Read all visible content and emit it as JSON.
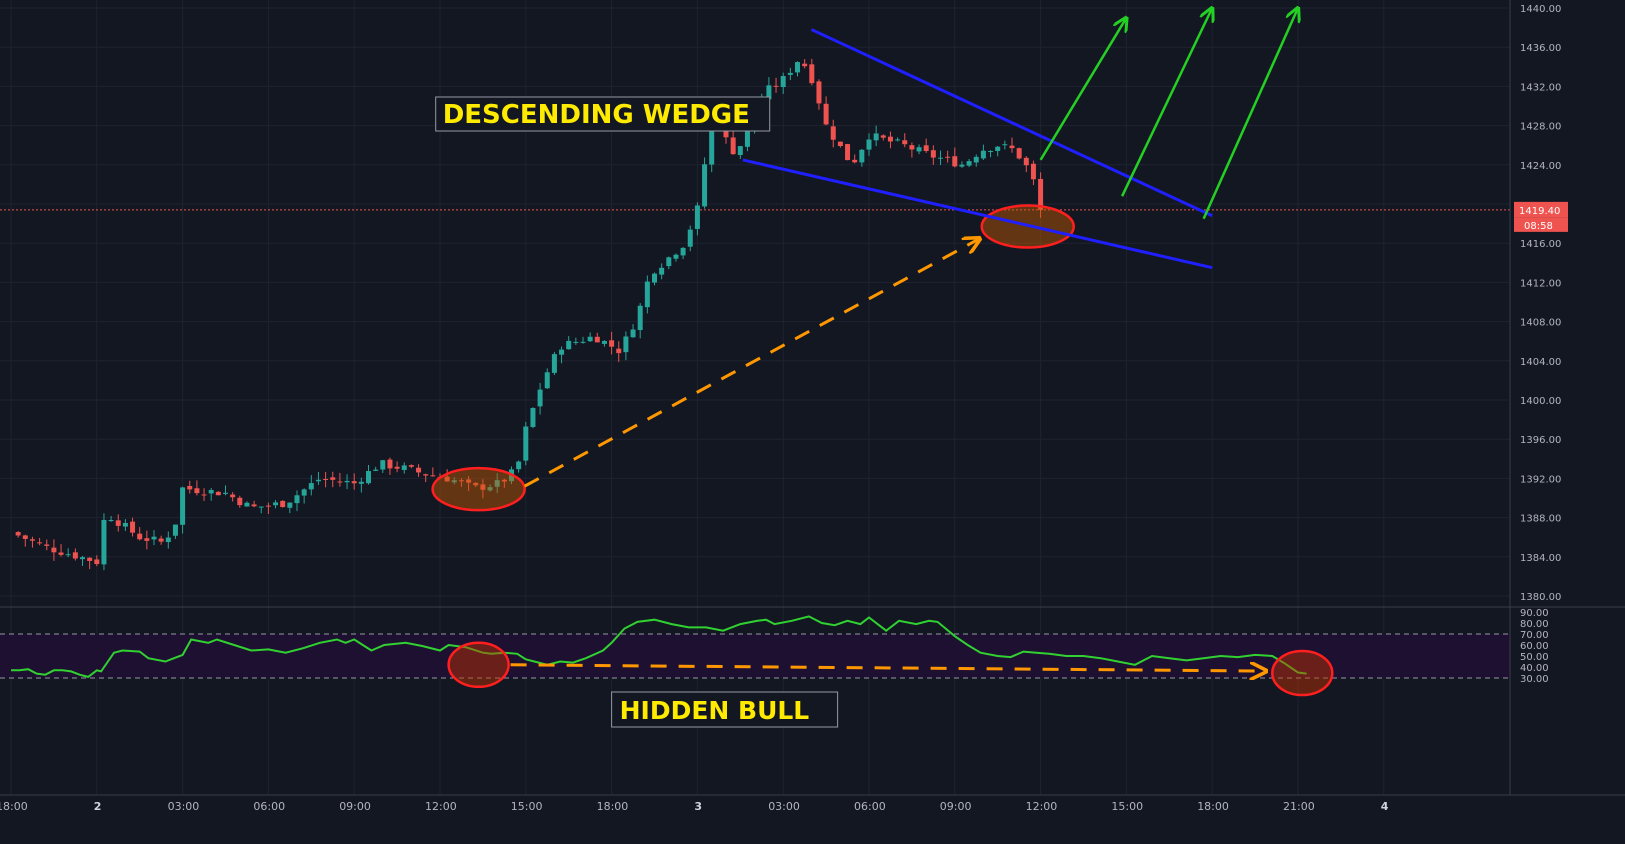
{
  "colors": {
    "background": "#131722",
    "grid": "#1f2330",
    "up_candle": "#26a69a",
    "down_candle": "#ef5350",
    "trendline": "#1f1fff",
    "arrows": "#24d024",
    "divergence": "#ff9800",
    "circles": "#ff1f1f",
    "rsi_line": "#30d130",
    "rsi_band": "#1e1030",
    "label_text": "#ffeb00",
    "price_tag": "#ef5350"
  },
  "annotations": {
    "wedge_label": "DESCENDING WEDGE",
    "hidden_bull_label": "HIDDEN BULL"
  },
  "price_axis": {
    "ticks": [
      "1440.00",
      "1436.00",
      "1432.00",
      "1428.00",
      "1424.00",
      "1420.00",
      "1416.00",
      "1412.00",
      "1408.00",
      "1404.00",
      "1400.00",
      "1396.00",
      "1392.00",
      "1388.00",
      "1384.00",
      "1380.00"
    ],
    "current_price": "1419.40",
    "countdown": "08:58"
  },
  "rsi_axis": {
    "ticks": [
      "90.00",
      "80.00",
      "70.00",
      "60.00",
      "50.00",
      "40.00",
      "30.00"
    ]
  },
  "time_axis": {
    "labels": [
      "18:00",
      "2",
      "03:00",
      "06:00",
      "09:00",
      "12:00",
      "15:00",
      "18:00",
      "3",
      "03:00",
      "06:00",
      "09:00",
      "12:00",
      "15:00",
      "18:00",
      "21:00",
      "4"
    ]
  },
  "chart_data": [
    {
      "type": "candlestick",
      "title": "",
      "ylim": [
        1379,
        1441
      ],
      "current_price": 1419.4,
      "x_sessions": [
        "1 18:00",
        "2",
        "2 03:00",
        "2 06:00",
        "2 09:00",
        "2 12:00",
        "2 15:00",
        "2 18:00",
        "3",
        "3 03:00",
        "3 06:00",
        "3 09:00",
        "3 12:00",
        "3 15:00",
        "3 18:00",
        "3 21:00",
        "4"
      ],
      "close_path": [
        [
          0.0,
          1386.5
        ],
        [
          0.4,
          1385.0
        ],
        [
          0.8,
          1384.0
        ],
        [
          1.0,
          1383.5
        ],
        [
          1.1,
          1388.5
        ],
        [
          1.5,
          1386.0
        ],
        [
          1.75,
          1385.5
        ],
        [
          1.9,
          1386.8
        ],
        [
          2.0,
          1391.0
        ],
        [
          2.5,
          1390.5
        ],
        [
          2.8,
          1389.0
        ],
        [
          3.2,
          1389.5
        ],
        [
          3.6,
          1392.0
        ],
        [
          4.0,
          1391.5
        ],
        [
          4.3,
          1393.5
        ],
        [
          4.6,
          1393.0
        ],
        [
          4.8,
          1392.5
        ],
        [
          5.1,
          1392.0
        ],
        [
          5.4,
          1391.0
        ],
        [
          5.7,
          1391.5
        ],
        [
          5.9,
          1393.0
        ],
        [
          6.0,
          1397.0
        ],
        [
          6.2,
          1402.0
        ],
        [
          6.4,
          1405.5
        ],
        [
          6.8,
          1406.5
        ],
        [
          7.1,
          1405.0
        ],
        [
          7.3,
          1408.5
        ],
        [
          7.45,
          1413.0
        ],
        [
          7.6,
          1414.0
        ],
        [
          7.85,
          1416.0
        ],
        [
          8.0,
          1419.5
        ],
        [
          8.1,
          1425.0
        ],
        [
          8.12,
          1430.5
        ],
        [
          8.3,
          1427.0
        ],
        [
          8.45,
          1425.0
        ],
        [
          8.6,
          1428.0
        ],
        [
          8.8,
          1431.5
        ],
        [
          8.98,
          1432.5
        ],
        [
          9.2,
          1435.0
        ],
        [
          9.35,
          1432.5
        ],
        [
          9.5,
          1428.0
        ],
        [
          9.8,
          1424.0
        ],
        [
          10.0,
          1427.0
        ],
        [
          10.2,
          1426.5
        ],
        [
          10.4,
          1426.0
        ],
        [
          10.7,
          1425.0
        ],
        [
          10.9,
          1424.5
        ],
        [
          11.1,
          1424.0
        ],
        [
          11.3,
          1425.5
        ],
        [
          11.5,
          1426.0
        ],
        [
          11.7,
          1425.5
        ],
        [
          11.9,
          1423.0
        ],
        [
          11.95,
          1421.0
        ],
        [
          12.0,
          1419.4
        ]
      ],
      "wedge_upper": [
        [
          9.33,
          1437.8
        ],
        [
          14.0,
          1418.8
        ]
      ],
      "wedge_lower": [
        [
          8.53,
          1424.5
        ],
        [
          14.0,
          1413.5
        ]
      ],
      "projected_arrows": [
        [
          [
            12.0,
            1424.5
          ],
          [
            13.0,
            1439.0
          ]
        ],
        [
          [
            12.95,
            1420.8
          ],
          [
            14.0,
            1440.0
          ]
        ],
        [
          [
            13.9,
            1418.5
          ],
          [
            15.0,
            1440.0
          ]
        ]
      ],
      "swing_lows": [
        {
          "x": 5.45,
          "y": 1390.9
        },
        {
          "x": 11.85,
          "y": 1417.7
        }
      ]
    },
    {
      "type": "line",
      "title": "",
      "ylim": [
        27,
        91
      ],
      "bands": [
        30,
        70
      ],
      "series": [
        {
          "values": [
            [
              0.0,
              37
            ],
            [
              0.1,
              37
            ],
            [
              0.2,
              38
            ],
            [
              0.3,
              34
            ],
            [
              0.4,
              33
            ],
            [
              0.5,
              37
            ],
            [
              0.6,
              37
            ],
            [
              0.7,
              36
            ],
            [
              0.8,
              33
            ],
            [
              0.9,
              31
            ],
            [
              1.0,
              37
            ],
            [
              1.05,
              36
            ],
            [
              1.2,
              53
            ],
            [
              1.3,
              55
            ],
            [
              1.5,
              54
            ],
            [
              1.6,
              48
            ],
            [
              1.8,
              45
            ],
            [
              1.9,
              48
            ],
            [
              2.0,
              51
            ],
            [
              2.1,
              65
            ],
            [
              2.3,
              62
            ],
            [
              2.4,
              65
            ],
            [
              2.6,
              60
            ],
            [
              2.8,
              55
            ],
            [
              3.0,
              56
            ],
            [
              3.2,
              53
            ],
            [
              3.4,
              57
            ],
            [
              3.6,
              62
            ],
            [
              3.8,
              65
            ],
            [
              3.9,
              62
            ],
            [
              4.0,
              65
            ],
            [
              4.2,
              55
            ],
            [
              4.35,
              60
            ],
            [
              4.6,
              62
            ],
            [
              4.8,
              59
            ],
            [
              5.0,
              55
            ],
            [
              5.1,
              60
            ],
            [
              5.3,
              58
            ],
            [
              5.5,
              53
            ],
            [
              5.6,
              52
            ],
            [
              5.75,
              53
            ],
            [
              5.9,
              52
            ],
            [
              6.0,
              47
            ],
            [
              6.15,
              44
            ],
            [
              6.25,
              42
            ],
            [
              6.4,
              45
            ],
            [
              6.55,
              44
            ],
            [
              6.7,
              48
            ],
            [
              6.9,
              55
            ],
            [
              7.0,
              62
            ],
            [
              7.15,
              75
            ],
            [
              7.3,
              81
            ],
            [
              7.5,
              83
            ],
            [
              7.7,
              79
            ],
            [
              7.9,
              76
            ],
            [
              8.1,
              76
            ],
            [
              8.3,
              73
            ],
            [
              8.5,
              79
            ],
            [
              8.7,
              82
            ],
            [
              8.8,
              83
            ],
            [
              8.9,
              79
            ],
            [
              9.1,
              82
            ],
            [
              9.3,
              86
            ],
            [
              9.45,
              80
            ],
            [
              9.6,
              78
            ],
            [
              9.75,
              82
            ],
            [
              9.9,
              79
            ],
            [
              10.0,
              85
            ],
            [
              10.2,
              73
            ],
            [
              10.35,
              82
            ],
            [
              10.55,
              79
            ],
            [
              10.7,
              82
            ],
            [
              10.8,
              81
            ],
            [
              11.0,
              68
            ],
            [
              11.15,
              60
            ],
            [
              11.3,
              53
            ],
            [
              11.5,
              50
            ],
            [
              11.65,
              49
            ],
            [
              11.8,
              54
            ],
            [
              11.95,
              53
            ],
            [
              12.1,
              52
            ],
            [
              12.3,
              50
            ],
            [
              12.5,
              50
            ],
            [
              12.7,
              48
            ],
            [
              12.9,
              45
            ],
            [
              13.1,
              42
            ],
            [
              13.3,
              50
            ],
            [
              13.5,
              48
            ],
            [
              13.7,
              46
            ],
            [
              13.9,
              48
            ],
            [
              14.1,
              50
            ],
            [
              14.3,
              49
            ],
            [
              14.5,
              51
            ],
            [
              14.7,
              50
            ],
            [
              14.85,
              43
            ],
            [
              15.0,
              35
            ],
            [
              15.1,
              34
            ]
          ]
        }
      ],
      "divergence_line": [
        [
          5.45,
          42.0
        ],
        [
          15.0,
          34.5
        ]
      ],
      "divergence_points": [
        {
          "x": 5.45,
          "y": 42.0
        },
        {
          "x": 15.05,
          "y": 34.5
        }
      ]
    }
  ]
}
